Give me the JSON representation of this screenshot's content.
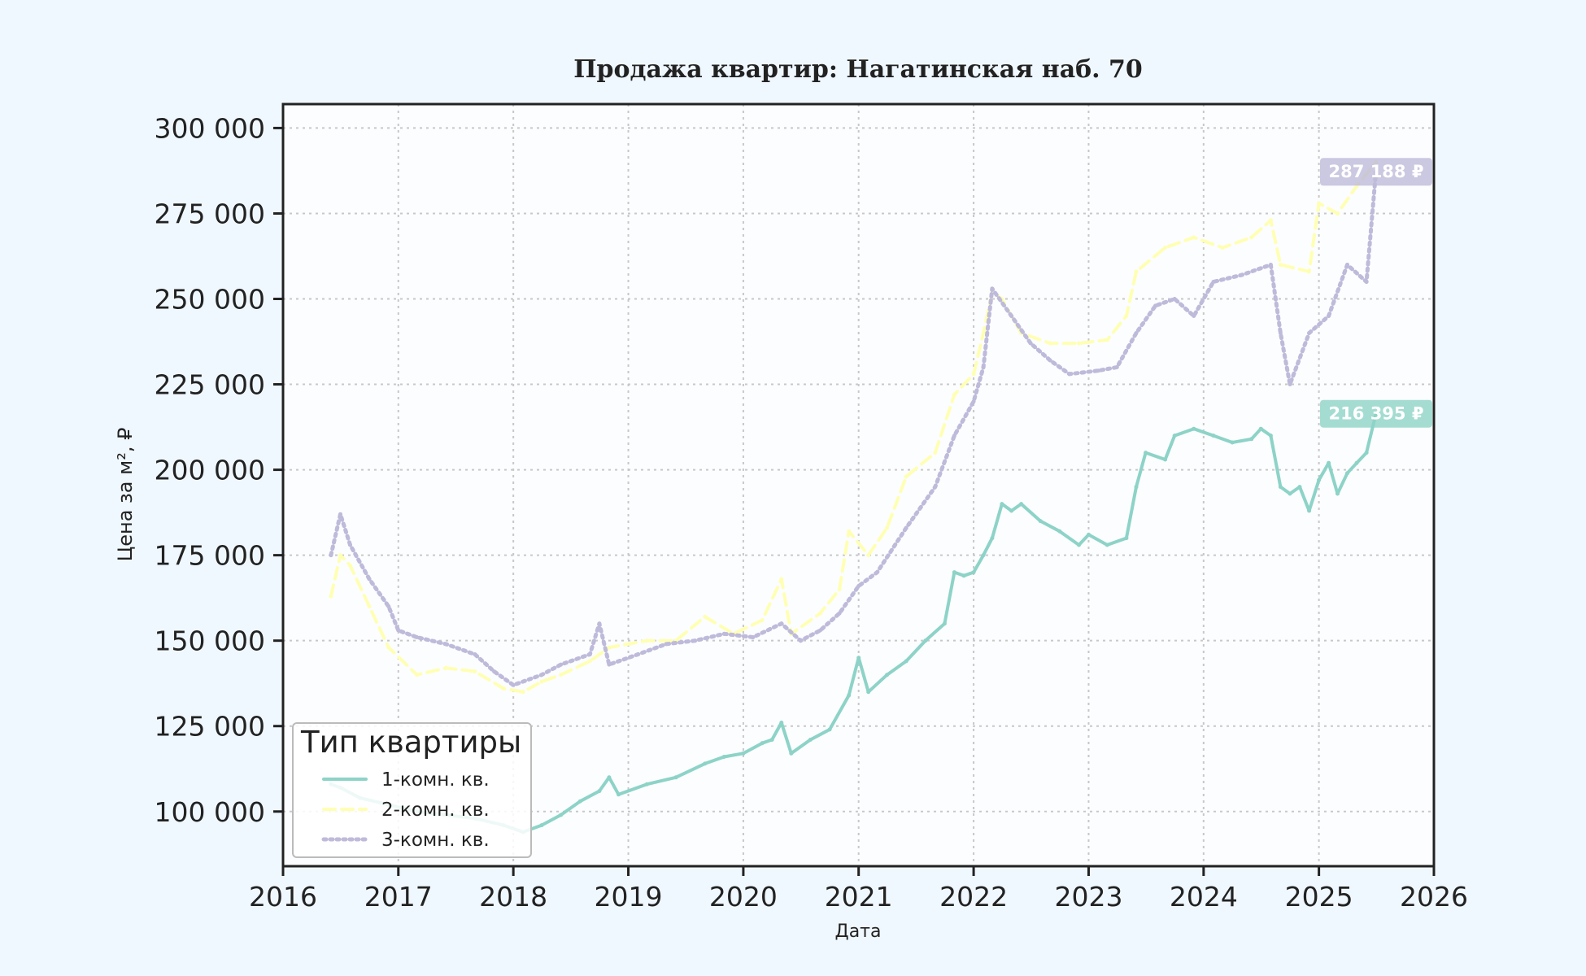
{
  "chart_data": {
    "type": "line",
    "title": "Продажа квартир: Нагатинская наб. 70",
    "xlabel": "Дата",
    "ylabel": "Цена за м², ₽",
    "xlim": [
      "2016-01-01",
      "2026-01-01"
    ],
    "ylim": [
      84000,
      307000
    ],
    "x_ticks": [
      "2016",
      "2017",
      "2018",
      "2019",
      "2020",
      "2021",
      "2022",
      "2023",
      "2024",
      "2025",
      "2026"
    ],
    "y_ticks": [
      100000,
      125000,
      150000,
      175000,
      200000,
      225000,
      250000,
      275000,
      300000
    ],
    "y_tick_labels": [
      "100 000",
      "125 000",
      "150 000",
      "175 000",
      "200 000",
      "225 000",
      "250 000",
      "275 000",
      "300 000"
    ],
    "grid": true,
    "legend": {
      "title": "Тип квартиры",
      "position": "lower-left"
    },
    "colors": {
      "1-комн. кв.": "#8dd3c7",
      "2-комн. кв.": "#ffffb3",
      "3-комн. кв.": "#bebada",
      "background": "#f0f8ff"
    },
    "series": [
      {
        "name": "1-комн. кв.",
        "style": "solid",
        "color": "#8dd3c7",
        "points": [
          [
            "2016-06-01",
            108000
          ],
          [
            "2016-07-01",
            107000
          ],
          [
            "2016-09-01",
            104000
          ],
          [
            "2016-12-01",
            102000
          ],
          [
            "2017-03-01",
            100000
          ],
          [
            "2017-06-01",
            99000
          ],
          [
            "2017-09-01",
            98000
          ],
          [
            "2017-12-01",
            96000
          ],
          [
            "2018-02-01",
            94000
          ],
          [
            "2018-04-01",
            96000
          ],
          [
            "2018-06-01",
            99000
          ],
          [
            "2018-08-01",
            103000
          ],
          [
            "2018-10-01",
            106000
          ],
          [
            "2018-11-01",
            110000
          ],
          [
            "2018-12-01",
            105000
          ],
          [
            "2019-03-01",
            108000
          ],
          [
            "2019-06-01",
            110000
          ],
          [
            "2019-09-01",
            114000
          ],
          [
            "2019-11-01",
            116000
          ],
          [
            "2020-01-01",
            117000
          ],
          [
            "2020-03-01",
            120000
          ],
          [
            "2020-04-01",
            121000
          ],
          [
            "2020-05-01",
            126000
          ],
          [
            "2020-06-01",
            117000
          ],
          [
            "2020-08-01",
            121000
          ],
          [
            "2020-10-01",
            124000
          ],
          [
            "2020-12-01",
            134000
          ],
          [
            "2021-01-01",
            145000
          ],
          [
            "2021-02-01",
            135000
          ],
          [
            "2021-04-01",
            140000
          ],
          [
            "2021-06-01",
            144000
          ],
          [
            "2021-08-01",
            150000
          ],
          [
            "2021-10-01",
            155000
          ],
          [
            "2021-11-01",
            170000
          ],
          [
            "2021-12-01",
            169000
          ],
          [
            "2022-01-01",
            170000
          ],
          [
            "2022-02-01",
            175000
          ],
          [
            "2022-03-01",
            180000
          ],
          [
            "2022-04-01",
            190000
          ],
          [
            "2022-05-01",
            188000
          ],
          [
            "2022-06-01",
            190000
          ],
          [
            "2022-08-01",
            185000
          ],
          [
            "2022-10-01",
            182000
          ],
          [
            "2022-12-01",
            178000
          ],
          [
            "2023-01-01",
            181000
          ],
          [
            "2023-03-01",
            178000
          ],
          [
            "2023-05-01",
            180000
          ],
          [
            "2023-06-01",
            195000
          ],
          [
            "2023-07-01",
            205000
          ],
          [
            "2023-09-01",
            203000
          ],
          [
            "2023-10-01",
            210000
          ],
          [
            "2023-12-01",
            212000
          ],
          [
            "2024-02-01",
            210000
          ],
          [
            "2024-04-01",
            208000
          ],
          [
            "2024-06-01",
            209000
          ],
          [
            "2024-07-01",
            212000
          ],
          [
            "2024-08-01",
            210000
          ],
          [
            "2024-09-01",
            195000
          ],
          [
            "2024-10-01",
            193000
          ],
          [
            "2024-11-01",
            195000
          ],
          [
            "2024-12-01",
            188000
          ],
          [
            "2025-01-01",
            197000
          ],
          [
            "2025-02-01",
            202000
          ],
          [
            "2025-03-01",
            193000
          ],
          [
            "2025-04-01",
            199000
          ],
          [
            "2025-05-01",
            202000
          ],
          [
            "2025-06-01",
            205000
          ],
          [
            "2025-07-01",
            216395
          ]
        ]
      },
      {
        "name": "2-комн. кв.",
        "style": "dashed",
        "color": "#ffffb3",
        "points": [
          [
            "2016-06-01",
            163000
          ],
          [
            "2016-07-01",
            175000
          ],
          [
            "2016-08-01",
            172000
          ],
          [
            "2016-10-01",
            160000
          ],
          [
            "2016-12-01",
            148000
          ],
          [
            "2017-03-01",
            140000
          ],
          [
            "2017-06-01",
            142000
          ],
          [
            "2017-09-01",
            141000
          ],
          [
            "2017-12-01",
            136000
          ],
          [
            "2018-02-01",
            135000
          ],
          [
            "2018-04-01",
            138000
          ],
          [
            "2018-06-01",
            140000
          ],
          [
            "2018-09-01",
            144000
          ],
          [
            "2018-11-01",
            148000
          ],
          [
            "2019-03-01",
            150000
          ],
          [
            "2019-06-01",
            150000
          ],
          [
            "2019-09-01",
            157000
          ],
          [
            "2019-12-01",
            152000
          ],
          [
            "2020-03-01",
            156000
          ],
          [
            "2020-05-01",
            168000
          ],
          [
            "2020-06-01",
            152000
          ],
          [
            "2020-09-01",
            158000
          ],
          [
            "2020-11-01",
            165000
          ],
          [
            "2020-12-01",
            182000
          ],
          [
            "2021-02-01",
            175000
          ],
          [
            "2021-04-01",
            183000
          ],
          [
            "2021-06-01",
            198000
          ],
          [
            "2021-09-01",
            205000
          ],
          [
            "2021-11-01",
            222000
          ],
          [
            "2022-01-01",
            228000
          ],
          [
            "2022-02-01",
            240000
          ],
          [
            "2022-03-01",
            252000
          ],
          [
            "2022-04-01",
            250000
          ],
          [
            "2022-06-01",
            240000
          ],
          [
            "2022-09-01",
            237000
          ],
          [
            "2022-12-01",
            237000
          ],
          [
            "2023-03-01",
            238000
          ],
          [
            "2023-05-01",
            245000
          ],
          [
            "2023-06-01",
            258000
          ],
          [
            "2023-09-01",
            265000
          ],
          [
            "2023-12-01",
            268000
          ],
          [
            "2024-03-01",
            265000
          ],
          [
            "2024-06-01",
            268000
          ],
          [
            "2024-08-01",
            273000
          ],
          [
            "2024-09-01",
            260000
          ],
          [
            "2024-12-01",
            258000
          ],
          [
            "2025-01-01",
            278000
          ],
          [
            "2025-03-01",
            275000
          ],
          [
            "2025-05-01",
            283000
          ],
          [
            "2025-07-01",
            290000
          ]
        ]
      },
      {
        "name": "3-комн. кв.",
        "style": "dotted",
        "color": "#bebada",
        "points": [
          [
            "2016-06-01",
            175000
          ],
          [
            "2016-07-01",
            187000
          ],
          [
            "2016-08-01",
            178000
          ],
          [
            "2016-10-01",
            168000
          ],
          [
            "2016-12-01",
            160000
          ],
          [
            "2017-01-01",
            153000
          ],
          [
            "2017-03-01",
            151000
          ],
          [
            "2017-06-01",
            149000
          ],
          [
            "2017-09-01",
            146000
          ],
          [
            "2017-11-01",
            141000
          ],
          [
            "2018-01-01",
            137000
          ],
          [
            "2018-04-01",
            140000
          ],
          [
            "2018-06-01",
            143000
          ],
          [
            "2018-09-01",
            146000
          ],
          [
            "2018-10-01",
            155000
          ],
          [
            "2018-11-01",
            143000
          ],
          [
            "2019-02-01",
            146000
          ],
          [
            "2019-05-01",
            149000
          ],
          [
            "2019-08-01",
            150000
          ],
          [
            "2019-11-01",
            152000
          ],
          [
            "2020-02-01",
            151000
          ],
          [
            "2020-05-01",
            155000
          ],
          [
            "2020-07-01",
            150000
          ],
          [
            "2020-09-01",
            153000
          ],
          [
            "2020-11-01",
            158000
          ],
          [
            "2021-01-01",
            166000
          ],
          [
            "2021-03-01",
            170000
          ],
          [
            "2021-06-01",
            183000
          ],
          [
            "2021-09-01",
            195000
          ],
          [
            "2021-11-01",
            210000
          ],
          [
            "2022-01-01",
            220000
          ],
          [
            "2022-02-01",
            230000
          ],
          [
            "2022-03-01",
            253000
          ],
          [
            "2022-05-01",
            245000
          ],
          [
            "2022-07-01",
            237000
          ],
          [
            "2022-09-01",
            232000
          ],
          [
            "2022-11-01",
            228000
          ],
          [
            "2023-02-01",
            229000
          ],
          [
            "2023-04-01",
            230000
          ],
          [
            "2023-06-01",
            240000
          ],
          [
            "2023-08-01",
            248000
          ],
          [
            "2023-10-01",
            250000
          ],
          [
            "2023-12-01",
            245000
          ],
          [
            "2024-02-01",
            255000
          ],
          [
            "2024-05-01",
            257000
          ],
          [
            "2024-08-01",
            260000
          ],
          [
            "2024-09-01",
            240000
          ],
          [
            "2024-10-01",
            225000
          ],
          [
            "2024-12-01",
            240000
          ],
          [
            "2025-02-01",
            245000
          ],
          [
            "2025-04-01",
            260000
          ],
          [
            "2025-06-01",
            255000
          ],
          [
            "2025-07-01",
            287188
          ]
        ]
      }
    ],
    "annotations": [
      {
        "series": "3-комн. кв.",
        "x": "2025-07-01",
        "y": 287188,
        "text": "287 188 ₽"
      },
      {
        "series": "1-комн. кв.",
        "x": "2025-07-01",
        "y": 216395,
        "text": "216 395 ₽"
      }
    ]
  }
}
